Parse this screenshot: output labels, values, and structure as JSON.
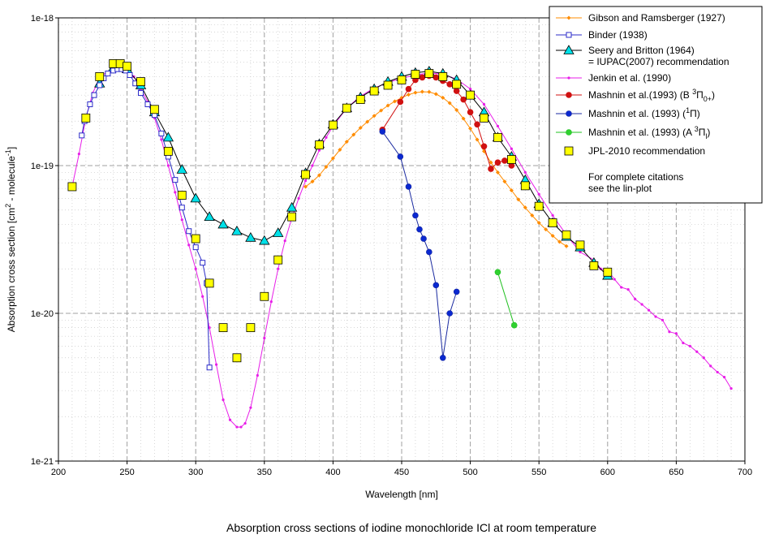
{
  "chart_data": {
    "type": "line",
    "title": "",
    "caption": "Absorption cross sections of iodine monochloride ICl at room temperature",
    "xlabel": "Wavelength [nm]",
    "ylabel": "Absorption cross section [cm2 - molecule-1]",
    "ylabel_parts": {
      "a": "Absorption cross section [cm",
      "sup1": "2",
      "b": " - molecule",
      "sup2": "-1",
      "c": "]"
    },
    "xscale": "linear",
    "yscale": "log",
    "xlim": [
      200,
      700
    ],
    "ylim": [
      1e-21,
      1e-18
    ],
    "x_ticks": [
      200,
      250,
      300,
      350,
      400,
      450,
      500,
      550,
      600,
      650,
      700
    ],
    "x_tick_labels": [
      "200",
      "250",
      "300",
      "350",
      "400",
      "450",
      "500",
      "550",
      "600",
      "650",
      "700"
    ],
    "y_ticks": [
      1e-21,
      1e-20,
      1e-19,
      1e-18
    ],
    "y_tick_labels": [
      "1e-21",
      "1e-20",
      "1e-19",
      "1e-18"
    ],
    "grid": true,
    "legend_position": "top-right",
    "legend_note": [
      "For complete citations",
      "see the lin-plot"
    ],
    "series": [
      {
        "name": "Gibson and Ramsberger (1927)",
        "color": "#ff8c00",
        "marker": "diamond-small",
        "x": [
          380,
          385,
          390,
          395,
          400,
          405,
          410,
          415,
          420,
          425,
          430,
          435,
          440,
          445,
          450,
          455,
          460,
          465,
          470,
          475,
          480,
          485,
          490,
          495,
          500,
          505,
          510,
          515,
          520,
          525,
          530,
          535,
          540,
          545,
          550,
          555,
          560,
          565,
          570
        ],
        "y": [
          7.2e-20,
          7.8e-20,
          8.6e-20,
          9.8e-20,
          1.12e-19,
          1.28e-19,
          1.45e-19,
          1.62e-19,
          1.8e-19,
          1.98e-19,
          2.17e-19,
          2.36e-19,
          2.55e-19,
          2.72e-19,
          2.88e-19,
          3.02e-19,
          3.12e-19,
          3.16e-19,
          3.15e-19,
          3.05e-19,
          2.88e-19,
          2.65e-19,
          2.38e-19,
          2.08e-19,
          1.78e-19,
          1.5e-19,
          1.25e-19,
          1.05e-19,
          9e-20,
          7.8e-20,
          6.8e-20,
          5.9e-20,
          5.2e-20,
          4.6e-20,
          4.1e-20,
          3.7e-20,
          3.35e-20,
          3.05e-20,
          2.85e-20
        ]
      },
      {
        "name": "Binder (1938)",
        "color": "#2b2bc8",
        "marker": "square-open",
        "x": [
          217,
          219,
          223,
          226,
          230,
          233,
          236,
          240,
          243,
          246,
          249,
          252,
          256,
          260,
          265,
          270,
          275,
          280,
          285,
          290,
          295,
          300,
          305,
          308,
          310
        ],
        "y": [
          1.6e-19,
          2e-19,
          2.6e-19,
          3e-19,
          3.5e-19,
          3.9e-19,
          4.2e-19,
          4.4e-19,
          4.5e-19,
          4.5e-19,
          4.4e-19,
          4.1e-19,
          3.6e-19,
          3.1e-19,
          2.6e-19,
          2.2e-19,
          1.65e-19,
          1.15e-19,
          8e-20,
          5.2e-20,
          3.6e-20,
          2.8e-20,
          2.2e-20,
          1.6e-20,
          4.3e-21
        ]
      },
      {
        "name": "Seery and Britton (1964) = IUPAC(2007) recommendation",
        "legend_lines": [
          "Seery and Britton (1964)",
          "= IUPAC(2007) recommendation"
        ],
        "color": "#000000",
        "marker_fill": "#00e0e8",
        "marker": "triangle",
        "x": [
          230,
          240,
          250,
          260,
          270,
          280,
          290,
          300,
          310,
          320,
          330,
          340,
          350,
          360,
          370,
          380,
          390,
          400,
          410,
          420,
          430,
          440,
          450,
          460,
          470,
          480,
          490,
          500,
          510,
          520,
          530,
          540,
          550,
          560,
          570,
          580,
          590,
          600
        ],
        "y": [
          3.6e-19,
          4.6e-19,
          4.5e-19,
          3.5e-19,
          2.3e-19,
          1.55e-19,
          9.4e-20,
          6e-20,
          4.5e-20,
          4e-20,
          3.6e-20,
          3.25e-20,
          3.1e-20,
          3.5e-20,
          5.2e-20,
          8.9e-20,
          1.4e-19,
          1.9e-19,
          2.45e-19,
          2.9e-19,
          3.3e-19,
          3.7e-19,
          4e-19,
          4.25e-19,
          4.35e-19,
          4.2e-19,
          3.8e-19,
          3e-19,
          2.3e-19,
          1.55e-19,
          1.15e-19,
          8e-20,
          5.5e-20,
          4.1e-20,
          3.3e-20,
          2.8e-20,
          2.2e-20,
          1.8e-20
        ]
      },
      {
        "name": "Jenkin et al. (1990)",
        "color": "#e81ee8",
        "marker": "dot-small",
        "x": [
          210,
          215,
          220,
          225,
          230,
          235,
          240,
          245,
          250,
          255,
          260,
          265,
          270,
          275,
          280,
          285,
          290,
          295,
          300,
          305,
          310,
          315,
          320,
          325,
          330,
          333,
          336,
          340,
          345,
          350,
          355,
          360,
          365,
          370,
          375,
          380,
          385,
          390,
          395,
          400,
          410,
          420,
          430,
          440,
          450,
          460,
          470,
          480,
          490,
          500,
          510,
          520,
          530,
          540,
          550,
          560,
          570,
          580,
          590,
          595,
          600,
          605,
          610,
          615,
          620,
          625,
          630,
          635,
          640,
          645,
          650,
          655,
          660,
          665,
          670,
          675,
          680,
          685,
          690
        ],
        "y": [
          7.2e-20,
          1.2e-19,
          2.1e-19,
          3.1e-19,
          3.9e-19,
          4.3e-19,
          4.5e-19,
          4.6e-19,
          4.5e-19,
          4e-19,
          3.3e-19,
          2.7e-19,
          2.1e-19,
          1.5e-19,
          1e-19,
          6.6e-20,
          4.3e-20,
          2.9e-20,
          2e-20,
          1.3e-20,
          8e-21,
          4.5e-21,
          2.6e-21,
          1.9e-21,
          1.7e-21,
          1.7e-21,
          1.8e-21,
          2.3e-21,
          3.8e-21,
          6.8e-21,
          1.2e-20,
          2e-20,
          3.1e-20,
          4.4e-20,
          6e-20,
          7.9e-20,
          1e-19,
          1.27e-19,
          1.55e-19,
          1.85e-19,
          2.45e-19,
          2.95e-19,
          3.35e-19,
          3.65e-19,
          3.9e-19,
          4.1e-19,
          4.25e-19,
          4.15e-19,
          3.85e-19,
          3.3e-19,
          2.6e-19,
          1.85e-19,
          1.3e-19,
          9e-20,
          6.4e-20,
          4.6e-20,
          3.4e-20,
          2.6e-20,
          2.3e-20,
          2e-20,
          1.95e-20,
          1.7e-20,
          1.5e-20,
          1.45e-20,
          1.25e-20,
          1.15e-20,
          1.05e-20,
          9.5e-21,
          9e-21,
          7.5e-21,
          7.3e-21,
          6.3e-21,
          6e-21,
          5.5e-21,
          5e-21,
          4.4e-21,
          4e-21,
          3.7e-21,
          3.1e-21
        ]
      },
      {
        "name": "Mashnin et al.(1993) (B 3Π0+)",
        "legend_parts": {
          "a": "Mashnin et al.(1993) (B ",
          "sup": "3",
          "b": "Π",
          "sub": "0+",
          "c": ")"
        },
        "color": "#d01010",
        "marker_fill": "#d01010",
        "marker": "circle",
        "x": [
          436,
          449,
          455,
          460,
          465,
          470,
          475,
          480,
          485,
          490,
          495,
          500,
          505,
          510,
          515,
          520,
          525,
          530
        ],
        "y": [
          1.75e-19,
          2.7e-19,
          3.3e-19,
          3.8e-19,
          3.95e-19,
          4.05e-19,
          3.95e-19,
          3.75e-19,
          3.55e-19,
          3.2e-19,
          2.8e-19,
          2.3e-19,
          1.9e-19,
          1.35e-19,
          9.5e-20,
          1.05e-19,
          1.08e-19,
          1e-19
        ]
      },
      {
        "name": "Mashnin et al. (1993) (1Π)",
        "legend_parts": {
          "a": "Mashnin et al. (1993) (",
          "sup": "1",
          "b": "Π",
          "sub": "",
          "c": ")"
        },
        "color": "#1a2aa0",
        "marker_fill": "#0a28d0",
        "marker": "circle",
        "x": [
          436,
          449,
          455,
          460,
          463,
          466,
          470,
          475,
          480,
          485,
          490
        ],
        "y": [
          1.7e-19,
          1.15e-19,
          7.2e-20,
          4.6e-20,
          3.7e-20,
          3.2e-20,
          2.6e-20,
          1.55e-20,
          5e-21,
          1e-20,
          1.4e-20
        ]
      },
      {
        "name": "Mashnin et al. (1993) (A 3Πl)",
        "legend_parts": {
          "a": "Mashnin et al. (1993) (A ",
          "sup": "3",
          "b": "Π",
          "sub": "l",
          "c": ")"
        },
        "color": "#20c020",
        "marker_fill": "#30d030",
        "marker": "circle",
        "x": [
          520,
          532
        ],
        "y": [
          1.9e-20,
          8.3e-21
        ]
      },
      {
        "name": "JPL-2010 recommendation",
        "color": "#000000",
        "marker_fill": "#ffff00",
        "marker": "square",
        "line": false,
        "x": [
          210,
          220,
          230,
          240,
          245,
          250,
          260,
          270,
          280,
          290,
          300,
          310,
          320,
          330,
          340,
          350,
          360,
          370,
          380,
          390,
          400,
          410,
          420,
          430,
          440,
          450,
          460,
          470,
          480,
          490,
          500,
          510,
          520,
          530,
          540,
          550,
          560,
          570,
          580,
          590,
          600
        ],
        "y": [
          7.2e-20,
          2.1e-19,
          4e-19,
          4.9e-19,
          4.9e-19,
          4.7e-19,
          3.7e-19,
          2.4e-19,
          1.25e-19,
          6.3e-20,
          3.2e-20,
          1.6e-20,
          8e-21,
          5e-21,
          8e-21,
          1.3e-20,
          2.3e-20,
          4.5e-20,
          8.7e-20,
          1.38e-19,
          1.88e-19,
          2.45e-19,
          2.8e-19,
          3.2e-19,
          3.5e-19,
          3.8e-19,
          4.15e-19,
          4.2e-19,
          4e-19,
          3.55e-19,
          3e-19,
          2.1e-19,
          1.55e-19,
          1.1e-19,
          7.3e-20,
          5.3e-20,
          4.1e-20,
          3.4e-20,
          2.9e-20,
          2.1e-20,
          1.9e-20
        ]
      }
    ]
  }
}
